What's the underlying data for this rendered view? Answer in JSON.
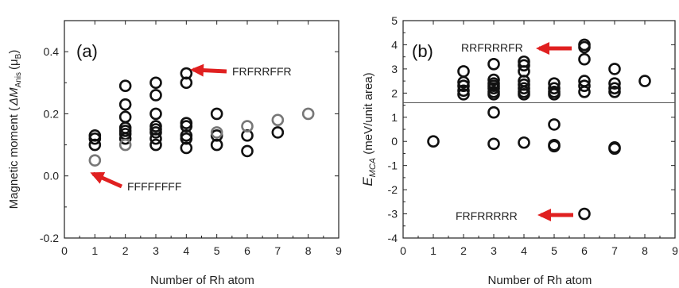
{
  "chart_data": [
    {
      "panel_label": "(a)",
      "type": "scatter",
      "xlabel": "Number of Rh atom",
      "ylabel": "Magnetic moment (ΔM_Anis (μ_B)",
      "ylabel_text": "Magnetic moment (",
      "ylabel_symbol": "ΔM",
      "ylabel_sub": "Anis",
      "ylabel_unit": "(μ",
      "ylabel_unit_sub": "B",
      "ylabel_close": ")",
      "xlim": [
        0,
        9
      ],
      "ylim": [
        -0.2,
        0.5
      ],
      "xticks": [
        0,
        1,
        2,
        3,
        4,
        5,
        6,
        7,
        8,
        9
      ],
      "yticks": [
        -0.2,
        0.0,
        0.2,
        0.4
      ],
      "ytick_labels": [
        "-0.2",
        "0.0",
        "0.2",
        "0.4"
      ],
      "series": [
        {
          "color": "#111111",
          "points": [
            [
              1,
              0.13
            ],
            [
              1,
              0.12
            ],
            [
              1,
              0.1
            ],
            [
              2,
              0.29
            ],
            [
              2,
              0.23
            ],
            [
              2,
              0.19
            ],
            [
              2,
              0.155
            ],
            [
              2,
              0.145
            ],
            [
              2,
              0.135
            ],
            [
              2,
              0.12
            ],
            [
              3,
              0.3
            ],
            [
              3,
              0.26
            ],
            [
              3,
              0.2
            ],
            [
              3,
              0.16
            ],
            [
              3,
              0.15
            ],
            [
              3,
              0.14
            ],
            [
              3,
              0.12
            ],
            [
              3,
              0.1
            ],
            [
              4,
              0.33
            ],
            [
              4,
              0.3
            ],
            [
              4,
              0.17
            ],
            [
              4,
              0.16
            ],
            [
              4,
              0.13
            ],
            [
              4,
              0.12
            ],
            [
              4,
              0.09
            ],
            [
              5,
              0.2
            ],
            [
              5,
              0.13
            ],
            [
              5,
              0.1
            ],
            [
              6,
              0.13
            ],
            [
              6,
              0.08
            ],
            [
              7,
              0.14
            ]
          ]
        },
        {
          "color": "#777777",
          "points": [
            [
              1,
              0.05
            ],
            [
              2,
              0.1
            ],
            [
              5,
              0.14
            ],
            [
              6,
              0.16
            ],
            [
              7,
              0.18
            ],
            [
              8,
              0.2
            ]
          ]
        }
      ],
      "annotations": [
        {
          "text": "FRFRRFFR",
          "arrow_direction": "left",
          "points_to": [
            4,
            0.33
          ]
        },
        {
          "text": "FFFFFFFF",
          "arrow_direction": "up-left",
          "points_to": [
            1,
            0.05
          ]
        }
      ]
    },
    {
      "panel_label": "(b)",
      "type": "scatter",
      "xlabel": "Number of Rh atom",
      "ylabel": "E_MCA (meV/unit area)",
      "ylabel_symbol": "E",
      "ylabel_sub": "MCA",
      "ylabel_text": " (meV/unit area)",
      "xlim": [
        0,
        9
      ],
      "ylim": [
        -4,
        5
      ],
      "xticks": [
        0,
        1,
        2,
        3,
        4,
        5,
        6,
        7,
        8,
        9
      ],
      "yticks": [
        -4,
        -3,
        -2,
        -1,
        0,
        1,
        2,
        3,
        4,
        5
      ],
      "reference_line": 1.6,
      "series": [
        {
          "color": "#111111",
          "points": [
            [
              1,
              0.0
            ],
            [
              2,
              2.9
            ],
            [
              2,
              2.45
            ],
            [
              2,
              2.3
            ],
            [
              2,
              2.1
            ],
            [
              2,
              1.95
            ],
            [
              3,
              3.2
            ],
            [
              3,
              2.55
            ],
            [
              3,
              2.4
            ],
            [
              3,
              2.3
            ],
            [
              3,
              2.2
            ],
            [
              3,
              2.05
            ],
            [
              3,
              1.95
            ],
            [
              3,
              1.2
            ],
            [
              3,
              -0.1
            ],
            [
              4,
              3.3
            ],
            [
              4,
              3.15
            ],
            [
              4,
              2.9
            ],
            [
              4,
              2.5
            ],
            [
              4,
              2.35
            ],
            [
              4,
              2.2
            ],
            [
              4,
              2.05
            ],
            [
              4,
              1.95
            ],
            [
              4,
              -0.05
            ],
            [
              5,
              2.4
            ],
            [
              5,
              2.2
            ],
            [
              5,
              2.05
            ],
            [
              5,
              1.95
            ],
            [
              5,
              0.7
            ],
            [
              5,
              -0.15
            ],
            [
              5,
              -0.2
            ],
            [
              6,
              4.0
            ],
            [
              6,
              3.9
            ],
            [
              6,
              3.4
            ],
            [
              6,
              2.5
            ],
            [
              6,
              2.3
            ],
            [
              6,
              2.05
            ],
            [
              6,
              -3.0
            ],
            [
              7,
              3.0
            ],
            [
              7,
              2.4
            ],
            [
              7,
              2.2
            ],
            [
              7,
              2.05
            ],
            [
              7,
              -0.25
            ],
            [
              7,
              -0.3
            ],
            [
              8,
              2.5
            ]
          ]
        }
      ],
      "annotations": [
        {
          "text": "RRFRRRFR",
          "arrow_direction": "left",
          "points_to": [
            6,
            3.95
          ]
        },
        {
          "text": "FRFRRRRR",
          "arrow_direction": "left",
          "points_to": [
            6,
            -3.0
          ]
        }
      ]
    }
  ]
}
